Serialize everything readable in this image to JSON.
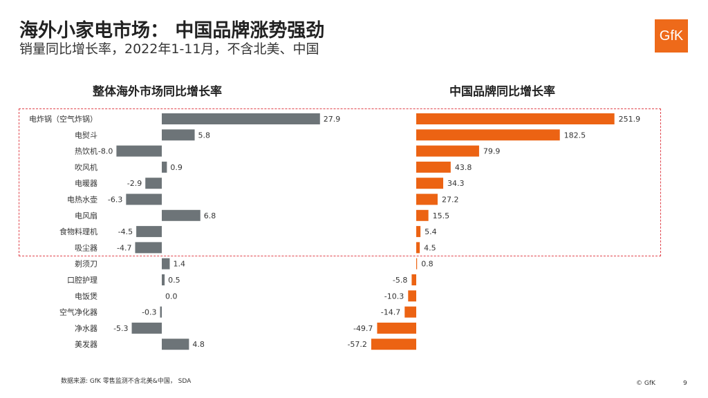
{
  "header": {
    "title": "海外小家电市场： 中国品牌涨势强劲",
    "subtitle": "销量同比增长率，2022年1-11月，不含北美、中国",
    "logo_text": "GfK"
  },
  "footer": {
    "source": "数据来源: GfK 零售监测不含北美&中国， SDA",
    "copyright": "© GfK",
    "page_number": "9"
  },
  "colors": {
    "overall_bar": "#6d7478",
    "china_bar": "#ec6313",
    "highlight_border": "#e0424a",
    "logo_bg": "#ee6a1a"
  },
  "chart_data": [
    {
      "type": "bar",
      "orientation": "horizontal",
      "title": "整体海外市场同比增长率",
      "categories": [
        "电炸锅（空气炸锅）",
        "电熨斗",
        "热饮机",
        "吹风机",
        "电暖器",
        "电热水壶",
        "电风扇",
        "食物料理机",
        "吸尘器",
        "剃须刀",
        "口腔护理",
        "电饭煲",
        "空气净化器",
        "净水器",
        "美发器"
      ],
      "values": [
        27.9,
        5.8,
        -8.0,
        0.9,
        -2.9,
        -6.3,
        6.8,
        -4.5,
        -4.7,
        1.4,
        0.5,
        0.0,
        -0.3,
        -5.3,
        4.8
      ],
      "value_labels": [
        "27.9",
        "5.8",
        "-8.0",
        "0.9",
        "-2.9",
        "-6.3",
        "6.8",
        "-4.5",
        "-4.7",
        "1.4",
        "0.5",
        "0.0",
        "-0.3",
        "-5.3",
        "4.8"
      ],
      "color": "#6d7478"
    },
    {
      "type": "bar",
      "orientation": "horizontal",
      "title": "中国品牌同比增长率",
      "categories": [
        "电炸锅（空气炸锅）",
        "电熨斗",
        "热饮机",
        "吹风机",
        "电暖器",
        "电热水壶",
        "电风扇",
        "食物料理机",
        "吸尘器",
        "剃须刀",
        "口腔护理",
        "电饭煲",
        "空气净化器",
        "净水器",
        "美发器"
      ],
      "values": [
        251.9,
        182.5,
        79.9,
        43.8,
        34.3,
        27.2,
        15.5,
        5.4,
        4.5,
        0.8,
        -5.8,
        -10.3,
        -14.7,
        -49.7,
        -57.2
      ],
      "value_labels": [
        "251.9",
        "182.5",
        "79.9",
        "43.8",
        "34.3",
        "27.2",
        "15.5",
        "5.4",
        "4.5",
        "0.8",
        "-5.8",
        "-10.3",
        "-14.7",
        "-49.7",
        "-57.2"
      ],
      "color": "#ec6313"
    }
  ]
}
